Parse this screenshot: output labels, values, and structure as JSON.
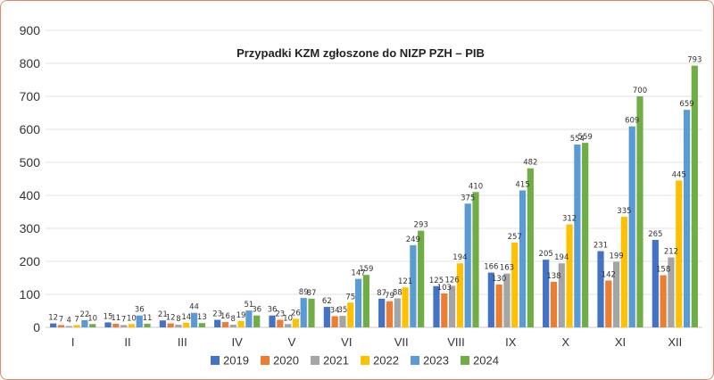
{
  "chart_data": {
    "type": "bar",
    "title": "Przypadki KZM zgłoszone do NIZP PZH – PIB",
    "xlabel": "",
    "ylabel": "",
    "ylim": [
      0,
      900
    ],
    "yticks": [
      0,
      100,
      200,
      300,
      400,
      500,
      600,
      700,
      800,
      900
    ],
    "grid": true,
    "legend_position": "bottom",
    "categories": [
      "I",
      "II",
      "III",
      "IV",
      "V",
      "VI",
      "VII",
      "VIII",
      "IX",
      "X",
      "XI",
      "XII"
    ],
    "series": [
      {
        "name": "2019",
        "color": "#4472c4",
        "values": [
          12,
          15,
          21,
          23,
          36,
          62,
          87,
          125,
          166,
          205,
          231,
          265
        ]
      },
      {
        "name": "2020",
        "color": "#ed7d31",
        "values": [
          7,
          11,
          12,
          16,
          23,
          34,
          79,
          103,
          130,
          138,
          142,
          158
        ]
      },
      {
        "name": "2021",
        "color": "#a5a5a5",
        "values": [
          4,
          7,
          8,
          8,
          10,
          35,
          88,
          126,
          163,
          194,
          199,
          212
        ]
      },
      {
        "name": "2022",
        "color": "#ffc000",
        "values": [
          7,
          10,
          14,
          19,
          26,
          75,
          121,
          194,
          257,
          312,
          335,
          445
        ]
      },
      {
        "name": "2023",
        "color": "#5b9bd5",
        "values": [
          22,
          36,
          44,
          51,
          89,
          147,
          249,
          375,
          415,
          554,
          609,
          659
        ]
      },
      {
        "name": "2024",
        "color": "#70ad47",
        "values": [
          10,
          11,
          13,
          36,
          87,
          159,
          293,
          410,
          482,
          559,
          700,
          793
        ]
      }
    ]
  }
}
